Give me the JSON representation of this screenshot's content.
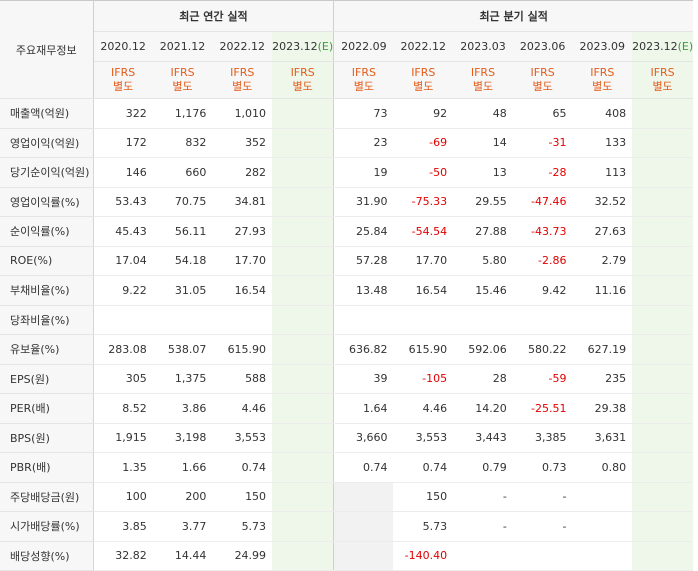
{
  "header": {
    "corner_label": "주요재무정보",
    "annual_group": "최근 연간 실적",
    "quarter_group": "최근 분기 실적",
    "estimate_suffix": "(E)",
    "ifrs_top": "IFRS",
    "ifrs_bottom": "별도",
    "annual_periods": [
      "2020.12",
      "2021.12",
      "2022.12",
      "2023.12"
    ],
    "quarter_periods": [
      "2022.09",
      "2022.12",
      "2023.03",
      "2023.06",
      "2023.09",
      "2023.12"
    ]
  },
  "rows": [
    {
      "label": "매출액(억원)",
      "annual": [
        "322",
        "1,176",
        "1,010",
        ""
      ],
      "quarter": [
        "73",
        "92",
        "48",
        "65",
        "408",
        ""
      ]
    },
    {
      "label": "영업이익(억원)",
      "annual": [
        "172",
        "832",
        "352",
        ""
      ],
      "quarter": [
        "23",
        "-69",
        "14",
        "-31",
        "133",
        ""
      ]
    },
    {
      "label": "당기순이익(억원)",
      "annual": [
        "146",
        "660",
        "282",
        ""
      ],
      "quarter": [
        "19",
        "-50",
        "13",
        "-28",
        "113",
        ""
      ]
    },
    {
      "label": "영업이익률(%)",
      "annual": [
        "53.43",
        "70.75",
        "34.81",
        ""
      ],
      "quarter": [
        "31.90",
        "-75.33",
        "29.55",
        "-47.46",
        "32.52",
        ""
      ]
    },
    {
      "label": "순이익률(%)",
      "annual": [
        "45.43",
        "56.11",
        "27.93",
        ""
      ],
      "quarter": [
        "25.84",
        "-54.54",
        "27.88",
        "-43.73",
        "27.63",
        ""
      ]
    },
    {
      "label": "ROE(%)",
      "annual": [
        "17.04",
        "54.18",
        "17.70",
        ""
      ],
      "quarter": [
        "57.28",
        "17.70",
        "5.80",
        "-2.86",
        "2.79",
        ""
      ]
    },
    {
      "label": "부채비율(%)",
      "annual": [
        "9.22",
        "31.05",
        "16.54",
        ""
      ],
      "quarter": [
        "13.48",
        "16.54",
        "15.46",
        "9.42",
        "11.16",
        ""
      ]
    },
    {
      "label": "당좌비율(%)",
      "annual": [
        "",
        "",
        "",
        ""
      ],
      "quarter": [
        "",
        "",
        "",
        "",
        "",
        ""
      ]
    },
    {
      "label": "유보율(%)",
      "annual": [
        "283.08",
        "538.07",
        "615.90",
        ""
      ],
      "quarter": [
        "636.82",
        "615.90",
        "592.06",
        "580.22",
        "627.19",
        ""
      ]
    },
    {
      "label": "EPS(원)",
      "annual": [
        "305",
        "1,375",
        "588",
        ""
      ],
      "quarter": [
        "39",
        "-105",
        "28",
        "-59",
        "235",
        ""
      ]
    },
    {
      "label": "PER(배)",
      "annual": [
        "8.52",
        "3.86",
        "4.46",
        ""
      ],
      "quarter": [
        "1.64",
        "4.46",
        "14.20",
        "-25.51",
        "29.38",
        ""
      ]
    },
    {
      "label": "BPS(원)",
      "annual": [
        "1,915",
        "3,198",
        "3,553",
        ""
      ],
      "quarter": [
        "3,660",
        "3,553",
        "3,443",
        "3,385",
        "3,631",
        ""
      ]
    },
    {
      "label": "PBR(배)",
      "annual": [
        "1.35",
        "1.66",
        "0.74",
        ""
      ],
      "quarter": [
        "0.74",
        "0.74",
        "0.79",
        "0.73",
        "0.80",
        ""
      ]
    },
    {
      "label": "주당배당금(원)",
      "annual": [
        "100",
        "200",
        "150",
        ""
      ],
      "quarter": [
        "",
        "150",
        "-",
        "-",
        "",
        ""
      ]
    },
    {
      "label": "시가배당률(%)",
      "annual": [
        "3.85",
        "3.77",
        "5.73",
        ""
      ],
      "quarter": [
        "",
        "5.73",
        "-",
        "-",
        "",
        ""
      ]
    },
    {
      "label": "배당성향(%)",
      "annual": [
        "32.82",
        "14.44",
        "24.99",
        ""
      ],
      "quarter": [
        "",
        "-140.40",
        "",
        "",
        "",
        ""
      ]
    }
  ],
  "colors": {
    "negative": "#e30000",
    "ifrs": "#e45c1a",
    "estimate_bg": "#eef7ea",
    "estimate_flag": "#3a9b3a"
  }
}
